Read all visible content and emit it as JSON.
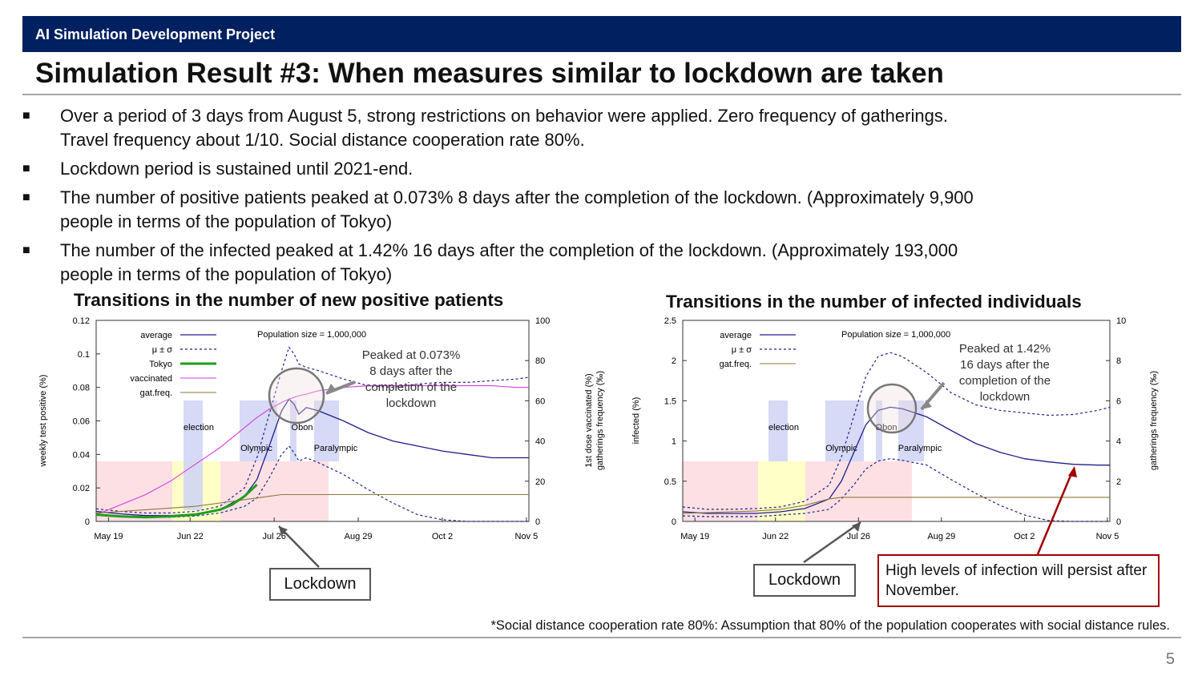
{
  "header": {
    "band": "AI Simulation Development Project",
    "title": "Simulation Result #3: When measures similar to lockdown are taken"
  },
  "bullets": [
    {
      "text": "Over a period of 3 days from August 5, strong restrictions on behavior were applied. Zero frequency of gatherings.",
      "cont": "Travel frequency about 1/10. Social distance cooperation rate 80%."
    },
    {
      "text": "Lockdown period is sustained until 2021-end."
    },
    {
      "text": "The number of positive patients peaked at 0.073% 8 days after the completion of the lockdown. (Approximately 9,900",
      "cont": "people in terms of the population of Tokyo)"
    },
    {
      "text": "The number of the infected peaked at 1.42% 16 days after the completion of the lockdown. (Approximately 193,000",
      "cont": "people in terms of the population of Tokyo)"
    }
  ],
  "bullet_marker": "■",
  "chart_data": [
    {
      "type": "line",
      "title": "Transitions in the number of new positive patients",
      "ylabel": "weekly test positive (%)",
      "y2label": "1st dose vaccinated (%)\ngatherings frequency (‰)",
      "ylim": [
        0,
        0.12
      ],
      "y2lim": [
        0,
        100
      ],
      "yticks": [
        "0",
        "0.02",
        "0.04",
        "0.06",
        "0.08",
        "0.1",
        "0.12"
      ],
      "y2ticks": [
        "0",
        "20",
        "40",
        "60",
        "80",
        "100"
      ],
      "xticks": [
        "May 19",
        "Jun 22",
        "Jul 26",
        "Aug 29",
        "Oct 2",
        "Nov 5"
      ],
      "legend": [
        "average",
        "μ ± σ",
        "Tokyo",
        "vaccinated",
        "gat.freq."
      ],
      "population": "Population size = 1,000,000",
      "events": [
        "election",
        "Olympic",
        "Obon",
        "Paralympic"
      ],
      "x_days": [
        0,
        10,
        20,
        30,
        40,
        50,
        60,
        65,
        70,
        75,
        78,
        80,
        82,
        85,
        90,
        100,
        110,
        120,
        130,
        140,
        150,
        160,
        170,
        175
      ],
      "series": [
        {
          "name": "average",
          "values": [
            0.006,
            0.0045,
            0.0035,
            0.0035,
            0.0045,
            0.007,
            0.015,
            0.025,
            0.045,
            0.066,
            0.073,
            0.07,
            0.064,
            0.068,
            0.066,
            0.06,
            0.053,
            0.048,
            0.045,
            0.042,
            0.04,
            0.038,
            0.038,
            0.038
          ]
        },
        {
          "name": "μ + σ",
          "values": [
            0.0075,
            0.006,
            0.005,
            0.005,
            0.006,
            0.009,
            0.02,
            0.038,
            0.064,
            0.09,
            0.104,
            0.1,
            0.094,
            0.092,
            0.09,
            0.085,
            0.081,
            0.08,
            0.082,
            0.083,
            0.083,
            0.084,
            0.085,
            0.086
          ]
        },
        {
          "name": "μ − σ",
          "values": [
            0.0045,
            0.003,
            0.0025,
            0.0025,
            0.0032,
            0.005,
            0.009,
            0.014,
            0.026,
            0.04,
            0.045,
            0.041,
            0.036,
            0.038,
            0.035,
            0.028,
            0.019,
            0.011,
            0.004,
            0.001,
            0,
            0,
            0,
            0
          ]
        },
        {
          "name": "vaccinated",
          "values": [
            0.004,
            0.01,
            0.016,
            0.024,
            0.034,
            0.044,
            0.056,
            0.062,
            0.067,
            0.071,
            0.073,
            0.074,
            0.075,
            0.076,
            0.078,
            0.08,
            0.081,
            0.081,
            0.081,
            0.081,
            0.081,
            0.081,
            0.08,
            0.08
          ]
        },
        {
          "name": "gat.freq.",
          "values": [
            0.005,
            0.006,
            0.007,
            0.008,
            0.009,
            0.011,
            0.013,
            0.014,
            0.015,
            0.016,
            0.016,
            0.016,
            0.016,
            0.016,
            0.016,
            0.016,
            0.016,
            0.016,
            0.016,
            0.016,
            0.016,
            0.016,
            0.016,
            0.016
          ]
        }
      ],
      "tokyo": {
        "x": [
          0,
          10,
          20,
          30,
          40,
          50,
          55,
          60,
          65
        ],
        "values": [
          0.004,
          0.003,
          0.0025,
          0.003,
          0.004,
          0.007,
          0.01,
          0.015,
          0.022
        ]
      },
      "annotation": [
        "Peaked at 0.073%",
        "8 days after the",
        "completion of the",
        "lockdown"
      ],
      "lockdown_label": "Lockdown"
    },
    {
      "type": "line",
      "title": "Transitions in the number of infected individuals",
      "ylabel": "infected (%)",
      "y2label": "gatherings frequency (‰)",
      "ylim": [
        0,
        2.5
      ],
      "y2lim": [
        0,
        10
      ],
      "yticks": [
        "0",
        "0.5",
        "1",
        "1.5",
        "2",
        "2.5"
      ],
      "y2ticks": [
        "0",
        "2",
        "4",
        "6",
        "8",
        "10"
      ],
      "xticks": [
        "May 19",
        "Jun 22",
        "Jul 26",
        "Aug 29",
        "Oct 2",
        "Nov 5"
      ],
      "legend": [
        "average",
        "μ ± σ",
        "gat.freq."
      ],
      "population": "Population size = 1,000,000",
      "events": [
        "election",
        "Olympic",
        "Obon",
        "Paralympic"
      ],
      "x_days": [
        0,
        10,
        20,
        30,
        40,
        50,
        60,
        65,
        70,
        75,
        80,
        85,
        90,
        100,
        110,
        120,
        130,
        140,
        150,
        160,
        170,
        175
      ],
      "series": [
        {
          "name": "average",
          "values": [
            0.12,
            0.1,
            0.1,
            0.1,
            0.12,
            0.16,
            0.28,
            0.5,
            0.85,
            1.2,
            1.38,
            1.42,
            1.4,
            1.3,
            1.13,
            0.97,
            0.86,
            0.78,
            0.74,
            0.71,
            0.7,
            0.7
          ]
        },
        {
          "name": "μ + σ",
          "values": [
            0.18,
            0.15,
            0.15,
            0.16,
            0.18,
            0.25,
            0.45,
            0.8,
            1.3,
            1.8,
            2.05,
            2.1,
            2.05,
            1.85,
            1.6,
            1.45,
            1.38,
            1.35,
            1.32,
            1.33,
            1.38,
            1.42
          ]
        },
        {
          "name": "μ − σ",
          "values": [
            0.07,
            0.06,
            0.06,
            0.06,
            0.08,
            0.1,
            0.15,
            0.28,
            0.45,
            0.65,
            0.75,
            0.78,
            0.76,
            0.7,
            0.52,
            0.35,
            0.2,
            0.08,
            0.01,
            0,
            0,
            0
          ]
        },
        {
          "name": "gat.freq.",
          "values": [
            0.1,
            0.11,
            0.12,
            0.13,
            0.15,
            0.2,
            0.28,
            0.3,
            0.3,
            0.3,
            0.3,
            0.3,
            0.3,
            0.3,
            0.3,
            0.3,
            0.3,
            0.3,
            0.3,
            0.3,
            0.3,
            0.3
          ]
        }
      ],
      "annotation": [
        "Peaked at 1.42%",
        "16 days after the",
        "completion of the",
        "lockdown"
      ],
      "lockdown_label": "Lockdown",
      "persist_note": "High levels of infection will persist after November."
    }
  ],
  "footnote": "*Social distance cooperation rate 80%: Assumption that 80% of the population cooperates with social distance rules.",
  "page_number": "5",
  "colors": {
    "band": "#002060",
    "average": "#1f1f8a",
    "tokyo": "#1e9e1e",
    "vaccinated": "#d73be0",
    "gatfreq": "#8a7a3a",
    "red": "#a00000"
  }
}
